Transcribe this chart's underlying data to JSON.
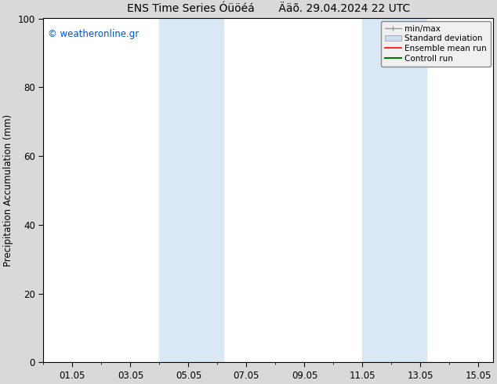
{
  "title": "ENS Time Series Óüöéá       Ääõ. 29.04.2024 22 UTC",
  "ylabel": "Precipitation Accumulation (mm)",
  "xlabel": "",
  "ylim": [
    0,
    100
  ],
  "yticks": [
    0,
    20,
    40,
    60,
    80,
    100
  ],
  "xtick_labels": [
    "01.05",
    "03.05",
    "05.05",
    "07.05",
    "09.05",
    "11.05",
    "13.05",
    "15.05"
  ],
  "xtick_positions": [
    1,
    3,
    5,
    7,
    9,
    11,
    13,
    15
  ],
  "xmin": 0.0,
  "xmax": 15.5,
  "shaded_regions": [
    {
      "xmin": 4.0,
      "xmax": 6.2
    },
    {
      "xmin": 11.0,
      "xmax": 13.2
    }
  ],
  "shade_color": "#dae8f5",
  "bg_color": "#d9d9d9",
  "plot_bg_color": "#ffffff",
  "watermark_text": "© weatheronline.gr",
  "watermark_color": "#0055cc",
  "legend_items": [
    {
      "label": "min/max",
      "color": "#999999",
      "lw": 1.0
    },
    {
      "label": "Standard deviation",
      "color": "#ccddee",
      "lw": 8
    },
    {
      "label": "Ensemble mean run",
      "color": "#ff0000",
      "lw": 1.2
    },
    {
      "label": "Controll run",
      "color": "#007700",
      "lw": 1.5
    }
  ],
  "title_fontsize": 10,
  "tick_fontsize": 8.5,
  "ylabel_fontsize": 8.5,
  "watermark_fontsize": 8.5,
  "legend_fontsize": 7.5
}
